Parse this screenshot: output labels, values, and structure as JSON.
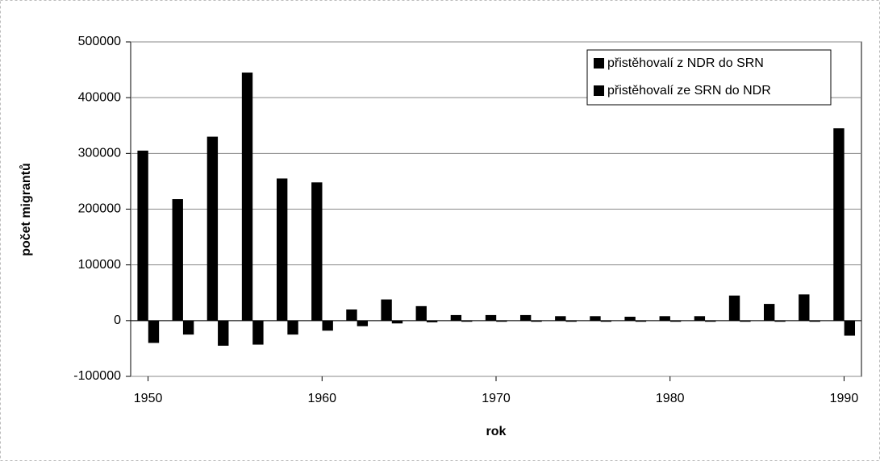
{
  "chart_data": {
    "type": "bar",
    "x_label": "rok",
    "y_label": "počet migrantů",
    "x": [
      1950,
      1952,
      1954,
      1956,
      1958,
      1960,
      1962,
      1964,
      1966,
      1968,
      1970,
      1972,
      1974,
      1976,
      1978,
      1980,
      1982,
      1984,
      1986,
      1988,
      1990
    ],
    "series": [
      {
        "name": "přistěhovalí z NDR do SRN",
        "color": "#000000",
        "values": [
          305000,
          218000,
          330000,
          445000,
          255000,
          248000,
          20000,
          38000,
          26000,
          10000,
          10000,
          10000,
          8000,
          8000,
          7000,
          8000,
          8000,
          45000,
          30000,
          47000,
          345000
        ]
      },
      {
        "name": "přistěhovalí ze SRN do NDR",
        "color": "#000000",
        "values": [
          -40000,
          -25000,
          -45000,
          -43000,
          -25000,
          -18000,
          -10000,
          -5000,
          -3000,
          -2000,
          -2000,
          -2000,
          -2000,
          -2000,
          -2000,
          -2000,
          -2000,
          -2000,
          -2000,
          -2000,
          -27000
        ]
      }
    ],
    "xlim": [
      1949,
      1991
    ],
    "xticks": [
      1950,
      1960,
      1970,
      1980,
      1990
    ],
    "ylim": [
      -100000,
      500000
    ],
    "yticks": [
      -100000,
      0,
      100000,
      200000,
      300000,
      400000,
      500000
    ],
    "grid": true,
    "legend": "upper right"
  }
}
